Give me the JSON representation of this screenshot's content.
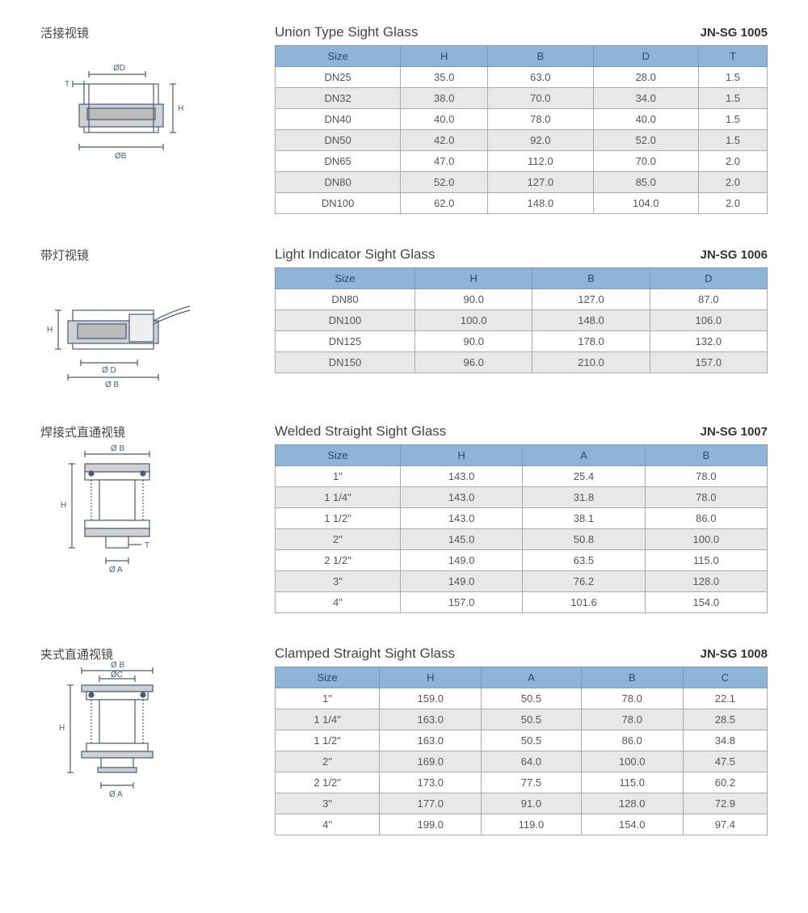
{
  "colors": {
    "header_bg": "#8eb4d8",
    "header_text": "#2a4a6a",
    "header_border": "#7a9bbf",
    "cell_border": "#aaaaaa",
    "cell_text": "#555555",
    "alt_row_bg": "#e8e8e8",
    "diagram_stroke": "#4a5a7a",
    "diagram_fill": "#d0d0d0"
  },
  "sections": [
    {
      "cn_title": "活接视镜",
      "en_title": "Union Type Sight Glass",
      "code": "JN-SG 1005",
      "diagram_labels": [
        "ØD",
        "T",
        "H",
        "ØB"
      ],
      "columns": [
        "Size",
        "H",
        "B",
        "D",
        "T"
      ],
      "rows": [
        [
          "DN25",
          "35.0",
          "63.0",
          "28.0",
          "1.5"
        ],
        [
          "DN32",
          "38.0",
          "70.0",
          "34.0",
          "1.5"
        ],
        [
          "DN40",
          "40.0",
          "78.0",
          "40.0",
          "1.5"
        ],
        [
          "DN50",
          "42.0",
          "92.0",
          "52.0",
          "1.5"
        ],
        [
          "DN65",
          "47.0",
          "112.0",
          "70.0",
          "2.0"
        ],
        [
          "DN80",
          "52.0",
          "127.0",
          "85.0",
          "2.0"
        ],
        [
          "DN100",
          "62.0",
          "148.0",
          "104.0",
          "2.0"
        ]
      ]
    },
    {
      "cn_title": "带灯视镜",
      "en_title": "Light Indicator Sight Glass",
      "code": "JN-SG 1006",
      "diagram_labels": [
        "H",
        "Ø D",
        "Ø B"
      ],
      "columns": [
        "Size",
        "H",
        "B",
        "D"
      ],
      "rows": [
        [
          "DN80",
          "90.0",
          "127.0",
          "87.0"
        ],
        [
          "DN100",
          "100.0",
          "148.0",
          "106.0"
        ],
        [
          "DN125",
          "90.0",
          "178.0",
          "132.0"
        ],
        [
          "DN150",
          "96.0",
          "210.0",
          "157.0"
        ]
      ]
    },
    {
      "cn_title": "焊接式直通视镜",
      "en_title": "Welded Straight Sight Glass",
      "code": "JN-SG 1007",
      "diagram_labels": [
        "Ø B",
        "H",
        "T",
        "Ø A"
      ],
      "columns": [
        "Size",
        "H",
        "A",
        "B"
      ],
      "rows": [
        [
          "1\"",
          "143.0",
          "25.4",
          "78.0"
        ],
        [
          "1 1/4\"",
          "143.0",
          "31.8",
          "78.0"
        ],
        [
          "1 1/2\"",
          "143.0",
          "38.1",
          "86.0"
        ],
        [
          "2\"",
          "145.0",
          "50.8",
          "100.0"
        ],
        [
          "2 1/2\"",
          "149.0",
          "63.5",
          "115.0"
        ],
        [
          "3\"",
          "149.0",
          "76.2",
          "128.0"
        ],
        [
          "4\"",
          "157.0",
          "101.6",
          "154.0"
        ]
      ]
    },
    {
      "cn_title": "夹式直通视镜",
      "en_title": "Clamped Straight Sight Glass",
      "code": "JN-SG 1008",
      "diagram_labels": [
        "Ø B",
        "ØC",
        "H",
        "Ø A"
      ],
      "columns": [
        "Size",
        "H",
        "A",
        "B",
        "C"
      ],
      "rows": [
        [
          "1\"",
          "159.0",
          "50.5",
          "78.0",
          "22.1"
        ],
        [
          "1 1/4\"",
          "163.0",
          "50.5",
          "78.0",
          "28.5"
        ],
        [
          "1 1/2\"",
          "163.0",
          "50.5",
          "86.0",
          "34.8"
        ],
        [
          "2\"",
          "169.0",
          "64.0",
          "100.0",
          "47.5"
        ],
        [
          "2 1/2\"",
          "173.0",
          "77.5",
          "115.0",
          "60.2"
        ],
        [
          "3\"",
          "177.0",
          "91.0",
          "128.0",
          "72.9"
        ],
        [
          "4\"",
          "199.0",
          "119.0",
          "154.0",
          "97.4"
        ]
      ]
    }
  ]
}
